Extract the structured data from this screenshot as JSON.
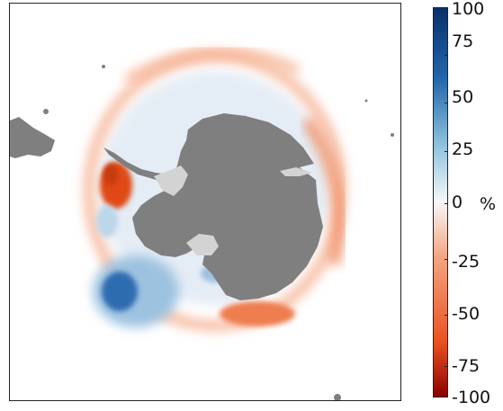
{
  "map": {
    "land_color": "#7f7f7f",
    "ice_shelf_color": "#d3d3d3",
    "ocean_color": "#ffffff"
  },
  "colorbar": {
    "unit": "%",
    "min": -100,
    "max": 100,
    "ticks": [
      "100",
      "75",
      "50",
      "25",
      "0",
      "-25",
      "-50",
      "-75",
      "-100"
    ],
    "colors": {
      "top": "#08306b",
      "upper": "#2166ac",
      "mid_blue": "#92c5de",
      "center": "#f7f7f7",
      "mid_red": "#f4a582",
      "lower": "#e9511f",
      "bottom": "#8b0000"
    }
  }
}
